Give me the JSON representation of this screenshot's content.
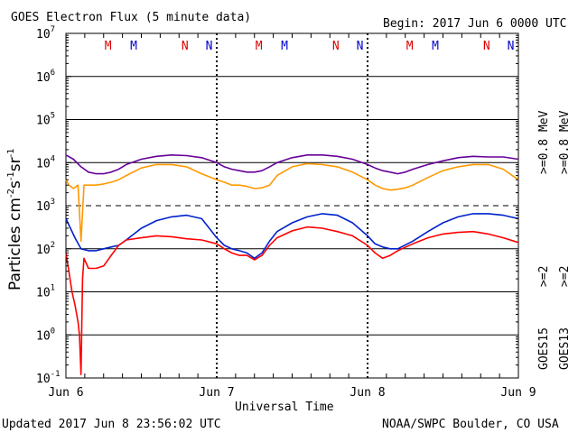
{
  "chart_data": {
    "type": "line",
    "title": "GOES Electron Flux (5 minute data)",
    "begin": "Begin: 2017 Jun 6 0000 UTC",
    "xlabel": "Universal Time",
    "ylabel": "Particles cm-2s-1sr-1",
    "ylabel_parts": {
      "main": "Particles cm",
      "exp1": "-2",
      "mid1": "s",
      "exp2": "-1",
      "mid2": "sr",
      "exp3": "-1"
    },
    "y_scale": "log",
    "ylim": [
      0.1,
      10000000
    ],
    "y_ticks": [
      {
        "base": "10",
        "exp": "-1"
      },
      {
        "base": "10",
        "exp": "0"
      },
      {
        "base": "10",
        "exp": "1"
      },
      {
        "base": "10",
        "exp": "2"
      },
      {
        "base": "10",
        "exp": "3"
      },
      {
        "base": "10",
        "exp": "4"
      },
      {
        "base": "10",
        "exp": "5"
      },
      {
        "base": "10",
        "exp": "6"
      },
      {
        "base": "10",
        "exp": "7"
      }
    ],
    "x_range_days": [
      0,
      3
    ],
    "x_tick_labels": [
      "Jun 6",
      "Jun 7",
      "Jun 8",
      "Jun 9"
    ],
    "threshold_line": 1000,
    "markers": [
      {
        "label": "M",
        "day": 0.28,
        "color": "#dd0000"
      },
      {
        "label": "M",
        "day": 0.45,
        "color": "#0000cc"
      },
      {
        "label": "N",
        "day": 0.79,
        "color": "#dd0000"
      },
      {
        "label": "N",
        "day": 0.95,
        "color": "#0000cc"
      },
      {
        "label": "M",
        "day": 1.28,
        "color": "#dd0000"
      },
      {
        "label": "M",
        "day": 1.45,
        "color": "#0000cc"
      },
      {
        "label": "N",
        "day": 1.79,
        "color": "#dd0000"
      },
      {
        "label": "N",
        "day": 1.95,
        "color": "#0000cc"
      },
      {
        "label": "M",
        "day": 2.28,
        "color": "#dd0000"
      },
      {
        "label": "M",
        "day": 2.45,
        "color": "#0000cc"
      },
      {
        "label": "N",
        "day": 2.79,
        "color": "#dd0000"
      },
      {
        "label": "N",
        "day": 2.95,
        "color": "#0000cc"
      }
    ],
    "series": [
      {
        "name": "GOES15 >=0.8 MeV",
        "color": "#660099",
        "x": [
          0,
          0.05,
          0.1,
          0.15,
          0.2,
          0.25,
          0.3,
          0.35,
          0.4,
          0.5,
          0.6,
          0.7,
          0.8,
          0.9,
          1.0,
          1.05,
          1.1,
          1.15,
          1.2,
          1.25,
          1.3,
          1.35,
          1.4,
          1.5,
          1.6,
          1.7,
          1.8,
          1.9,
          2.0,
          2.05,
          2.1,
          2.15,
          2.2,
          2.25,
          2.3,
          2.4,
          2.5,
          2.6,
          2.7,
          2.8,
          2.9,
          3.0
        ],
        "y": [
          15000,
          12000,
          8000,
          6000,
          5500,
          5500,
          6000,
          7000,
          9000,
          12000,
          14000,
          15000,
          14500,
          13000,
          10000,
          8000,
          7000,
          6500,
          6000,
          6000,
          6500,
          8000,
          10000,
          13000,
          15000,
          15000,
          14000,
          12000,
          9000,
          7500,
          6500,
          6000,
          5500,
          6000,
          7000,
          9000,
          11000,
          13000,
          14000,
          13500,
          13500,
          12000
        ]
      },
      {
        "name": "GOES13 >=0.8 MeV",
        "color": "#ff9900",
        "x": [
          0,
          0.02,
          0.05,
          0.08,
          0.1,
          0.12,
          0.15,
          0.2,
          0.25,
          0.3,
          0.35,
          0.4,
          0.5,
          0.6,
          0.7,
          0.8,
          0.9,
          1.0,
          1.05,
          1.1,
          1.15,
          1.2,
          1.25,
          1.3,
          1.35,
          1.4,
          1.5,
          1.6,
          1.7,
          1.8,
          1.9,
          2.0,
          2.05,
          2.1,
          2.15,
          2.2,
          2.25,
          2.3,
          2.4,
          2.5,
          2.6,
          2.7,
          2.8,
          2.9,
          3.0
        ],
        "y": [
          4000,
          3000,
          2500,
          3000,
          150,
          3000,
          3000,
          3000,
          3200,
          3500,
          4000,
          5000,
          7500,
          9000,
          9000,
          8000,
          5500,
          4000,
          3500,
          3000,
          3000,
          2800,
          2500,
          2600,
          3000,
          5000,
          8000,
          9500,
          9000,
          8000,
          6000,
          4000,
          3000,
          2500,
          2300,
          2400,
          2600,
          3000,
          4500,
          6500,
          8000,
          9000,
          9000,
          7000,
          4000
        ]
      },
      {
        "name": "GOES15 >=2 MeV",
        "color": "#0022cc",
        "x": [
          0,
          0.03,
          0.06,
          0.1,
          0.15,
          0.2,
          0.25,
          0.3,
          0.35,
          0.4,
          0.5,
          0.6,
          0.7,
          0.8,
          0.9,
          0.95,
          1.0,
          1.05,
          1.1,
          1.15,
          1.2,
          1.25,
          1.3,
          1.35,
          1.4,
          1.5,
          1.6,
          1.7,
          1.8,
          1.9,
          2.0,
          2.05,
          2.1,
          2.15,
          2.2,
          2.3,
          2.4,
          2.5,
          2.6,
          2.7,
          2.8,
          2.9,
          3.0
        ],
        "y": [
          500,
          300,
          180,
          100,
          90,
          90,
          100,
          110,
          120,
          160,
          300,
          450,
          550,
          600,
          500,
          300,
          180,
          120,
          100,
          90,
          80,
          60,
          80,
          150,
          250,
          400,
          550,
          650,
          600,
          400,
          200,
          130,
          110,
          100,
          100,
          150,
          250,
          400,
          550,
          650,
          650,
          600,
          500
        ]
      },
      {
        "name": "GOES13 >=2 MeV",
        "color": "#ff0000",
        "x": [
          0,
          0.02,
          0.04,
          0.06,
          0.08,
          0.09,
          0.1,
          0.11,
          0.12,
          0.15,
          0.2,
          0.25,
          0.3,
          0.35,
          0.4,
          0.5,
          0.6,
          0.7,
          0.8,
          0.9,
          1.0,
          1.05,
          1.1,
          1.15,
          1.2,
          1.25,
          1.3,
          1.35,
          1.4,
          1.5,
          1.6,
          1.7,
          1.8,
          1.9,
          2.0,
          2.05,
          2.1,
          2.15,
          2.2,
          2.3,
          2.4,
          2.5,
          2.6,
          2.7,
          2.8,
          2.9,
          3.0
        ],
        "y": [
          80,
          30,
          10,
          5,
          2,
          1,
          0.12,
          20,
          60,
          35,
          35,
          40,
          70,
          120,
          160,
          180,
          200,
          190,
          170,
          160,
          130,
          100,
          80,
          70,
          70,
          55,
          70,
          120,
          180,
          260,
          320,
          300,
          250,
          200,
          120,
          80,
          60,
          70,
          90,
          130,
          180,
          220,
          240,
          250,
          220,
          180,
          140
        ]
      }
    ]
  },
  "legend": [
    {
      "text": ">=0.8 MeV",
      "color": "#660099"
    },
    {
      "text": ">=0.8 MeV",
      "color": "#ff9900"
    },
    {
      "text": ">=2",
      "color": "#0022cc"
    },
    {
      "text": ">=2",
      "color": "#ff0000"
    },
    {
      "text": "GOES15",
      "color": "#000000"
    },
    {
      "text": "GOES13",
      "color": "#000000"
    }
  ],
  "footer": {
    "updated": "Updated 2017 Jun  8 23:56:02 UTC",
    "source": "NOAA/SWPC Boulder, CO USA"
  }
}
